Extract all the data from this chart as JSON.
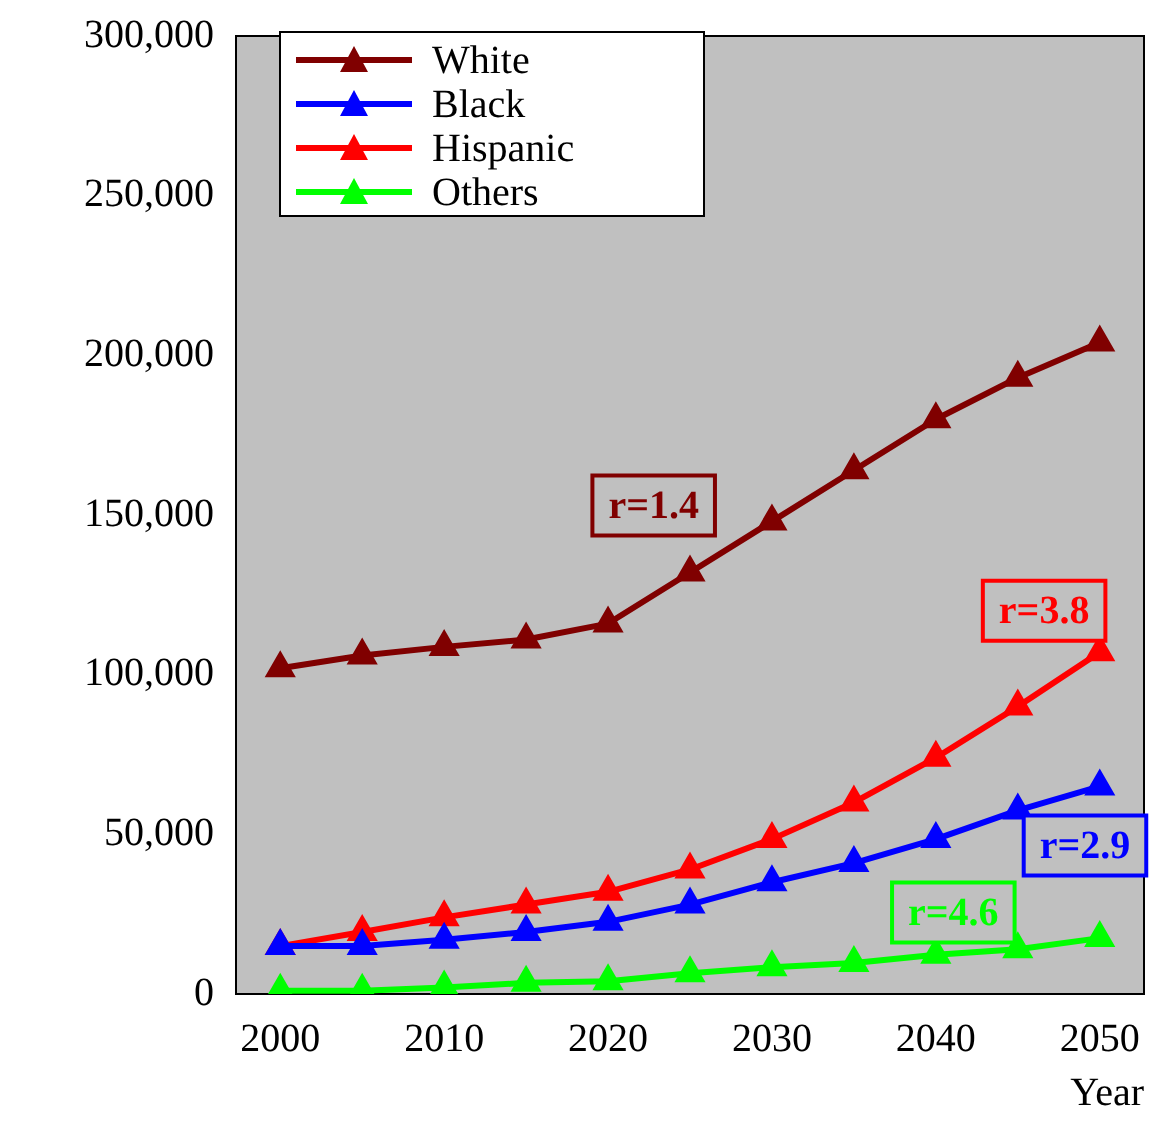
{
  "chart_data": {
    "type": "line",
    "xlabel": "Year",
    "x": [
      2000,
      2005,
      2010,
      2015,
      2020,
      2025,
      2030,
      2035,
      2040,
      2045,
      2050
    ],
    "series": [
      {
        "name": "White",
        "color": "#800000",
        "values": [
          102000,
          106000,
          108700,
          111000,
          116000,
          132000,
          148000,
          164000,
          180000,
          193000,
          204000
        ]
      },
      {
        "name": "Black",
        "color": "#0000ff",
        "values": [
          15000,
          15000,
          17000,
          19400,
          22600,
          28000,
          35000,
          41000,
          48500,
          57500,
          65000
        ]
      },
      {
        "name": "Hispanic",
        "color": "#ff0000",
        "values": [
          15000,
          19400,
          24000,
          28000,
          32000,
          39000,
          48500,
          60000,
          74000,
          90000,
          107000
        ]
      },
      {
        "name": "Others",
        "color": "#00ff00",
        "values": [
          1000,
          1000,
          2000,
          3500,
          4000,
          6500,
          8400,
          9700,
          12300,
          14000,
          17500
        ]
      }
    ],
    "xlim": [
      1997.3,
      2052.7
    ],
    "xticks": [
      2000,
      2010,
      2020,
      2030,
      2040,
      2050
    ],
    "ylim": [
      0,
      300000
    ],
    "yticks": [
      0,
      {
        "value": 50000,
        "label": "50,000"
      },
      {
        "value": 100000,
        "label": "100,000"
      },
      {
        "value": 150000,
        "label": "150,000"
      },
      {
        "value": 200000,
        "label": "200,000"
      },
      {
        "value": 250000,
        "label": "250,000"
      },
      {
        "value": 300000,
        "label": "300,000"
      }
    ],
    "marker": "triangle",
    "legend": "top left",
    "grid": false,
    "annotations": [
      "r=1.4",
      "r=2.9",
      "r=3.8",
      "r=4.6"
    ]
  }
}
